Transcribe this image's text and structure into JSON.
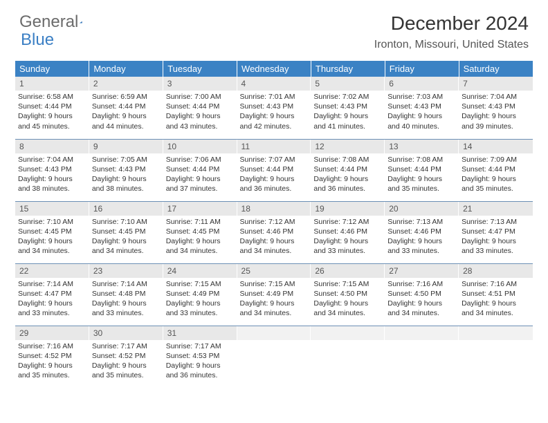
{
  "brand": {
    "part1": "General",
    "part2": "Blue"
  },
  "title": "December 2024",
  "location": "Ironton, Missouri, United States",
  "colors": {
    "header_bg": "#3b82c4",
    "header_text": "#ffffff",
    "daynum_bg": "#e8e8e8",
    "row_border": "#6b8fb5",
    "logo_gray": "#6b6b6b",
    "logo_blue": "#3b7fc4"
  },
  "weekdays": [
    "Sunday",
    "Monday",
    "Tuesday",
    "Wednesday",
    "Thursday",
    "Friday",
    "Saturday"
  ],
  "days": [
    {
      "n": "1",
      "sr": "6:58 AM",
      "ss": "4:44 PM",
      "dl": "9 hours and 45 minutes."
    },
    {
      "n": "2",
      "sr": "6:59 AM",
      "ss": "4:44 PM",
      "dl": "9 hours and 44 minutes."
    },
    {
      "n": "3",
      "sr": "7:00 AM",
      "ss": "4:44 PM",
      "dl": "9 hours and 43 minutes."
    },
    {
      "n": "4",
      "sr": "7:01 AM",
      "ss": "4:43 PM",
      "dl": "9 hours and 42 minutes."
    },
    {
      "n": "5",
      "sr": "7:02 AM",
      "ss": "4:43 PM",
      "dl": "9 hours and 41 minutes."
    },
    {
      "n": "6",
      "sr": "7:03 AM",
      "ss": "4:43 PM",
      "dl": "9 hours and 40 minutes."
    },
    {
      "n": "7",
      "sr": "7:04 AM",
      "ss": "4:43 PM",
      "dl": "9 hours and 39 minutes."
    },
    {
      "n": "8",
      "sr": "7:04 AM",
      "ss": "4:43 PM",
      "dl": "9 hours and 38 minutes."
    },
    {
      "n": "9",
      "sr": "7:05 AM",
      "ss": "4:43 PM",
      "dl": "9 hours and 38 minutes."
    },
    {
      "n": "10",
      "sr": "7:06 AM",
      "ss": "4:44 PM",
      "dl": "9 hours and 37 minutes."
    },
    {
      "n": "11",
      "sr": "7:07 AM",
      "ss": "4:44 PM",
      "dl": "9 hours and 36 minutes."
    },
    {
      "n": "12",
      "sr": "7:08 AM",
      "ss": "4:44 PM",
      "dl": "9 hours and 36 minutes."
    },
    {
      "n": "13",
      "sr": "7:08 AM",
      "ss": "4:44 PM",
      "dl": "9 hours and 35 minutes."
    },
    {
      "n": "14",
      "sr": "7:09 AM",
      "ss": "4:44 PM",
      "dl": "9 hours and 35 minutes."
    },
    {
      "n": "15",
      "sr": "7:10 AM",
      "ss": "4:45 PM",
      "dl": "9 hours and 34 minutes."
    },
    {
      "n": "16",
      "sr": "7:10 AM",
      "ss": "4:45 PM",
      "dl": "9 hours and 34 minutes."
    },
    {
      "n": "17",
      "sr": "7:11 AM",
      "ss": "4:45 PM",
      "dl": "9 hours and 34 minutes."
    },
    {
      "n": "18",
      "sr": "7:12 AM",
      "ss": "4:46 PM",
      "dl": "9 hours and 34 minutes."
    },
    {
      "n": "19",
      "sr": "7:12 AM",
      "ss": "4:46 PM",
      "dl": "9 hours and 33 minutes."
    },
    {
      "n": "20",
      "sr": "7:13 AM",
      "ss": "4:46 PM",
      "dl": "9 hours and 33 minutes."
    },
    {
      "n": "21",
      "sr": "7:13 AM",
      "ss": "4:47 PM",
      "dl": "9 hours and 33 minutes."
    },
    {
      "n": "22",
      "sr": "7:14 AM",
      "ss": "4:47 PM",
      "dl": "9 hours and 33 minutes."
    },
    {
      "n": "23",
      "sr": "7:14 AM",
      "ss": "4:48 PM",
      "dl": "9 hours and 33 minutes."
    },
    {
      "n": "24",
      "sr": "7:15 AM",
      "ss": "4:49 PM",
      "dl": "9 hours and 33 minutes."
    },
    {
      "n": "25",
      "sr": "7:15 AM",
      "ss": "4:49 PM",
      "dl": "9 hours and 34 minutes."
    },
    {
      "n": "26",
      "sr": "7:15 AM",
      "ss": "4:50 PM",
      "dl": "9 hours and 34 minutes."
    },
    {
      "n": "27",
      "sr": "7:16 AM",
      "ss": "4:50 PM",
      "dl": "9 hours and 34 minutes."
    },
    {
      "n": "28",
      "sr": "7:16 AM",
      "ss": "4:51 PM",
      "dl": "9 hours and 34 minutes."
    },
    {
      "n": "29",
      "sr": "7:16 AM",
      "ss": "4:52 PM",
      "dl": "9 hours and 35 minutes."
    },
    {
      "n": "30",
      "sr": "7:17 AM",
      "ss": "4:52 PM",
      "dl": "9 hours and 35 minutes."
    },
    {
      "n": "31",
      "sr": "7:17 AM",
      "ss": "4:53 PM",
      "dl": "9 hours and 36 minutes."
    }
  ],
  "labels": {
    "sunrise": "Sunrise:",
    "sunset": "Sunset:",
    "daylight": "Daylight:"
  }
}
